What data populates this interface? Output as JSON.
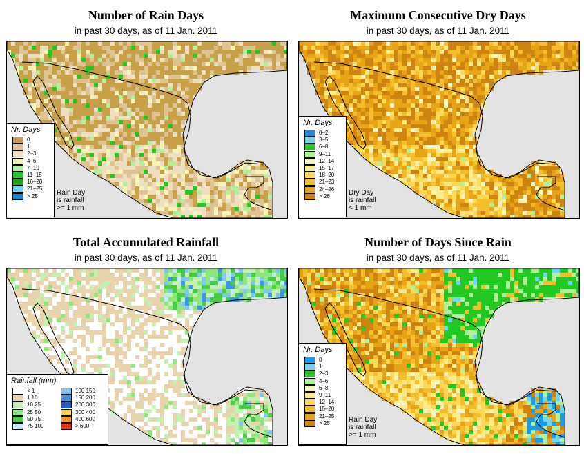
{
  "panels": [
    {
      "title": "Number of Rain Days",
      "subtitle": "in past 30 days, as of  11 Jan. 2011",
      "legend_title": "Nr. Days",
      "classes": [
        {
          "label": "0",
          "color": "#c9a04a"
        },
        {
          "label": "1",
          "color": "#dfc393"
        },
        {
          "label": "2–3",
          "color": "#eedfc0"
        },
        {
          "label": "4–6",
          "color": "#f5f3b8"
        },
        {
          "label": "7–10",
          "color": "#b2f09a"
        },
        {
          "label": "11–15",
          "color": "#22c922"
        },
        {
          "label": "16–20",
          "color": "#16a816"
        },
        {
          "label": "21–25",
          "color": "#6fd6f2"
        },
        {
          "label": "> 25",
          "color": "#1a86d0"
        }
      ],
      "note": [
        "Rain Day",
        "is rainfall",
        ">= 1 mm"
      ]
    },
    {
      "title": "Maximum Consecutive Dry Days",
      "subtitle": "in past 30 days, as of  11 Jan. 2011",
      "legend_title": "Nr. Days",
      "classes": [
        {
          "label": "0–2",
          "color": "#1a8fe0"
        },
        {
          "label": "3–5",
          "color": "#6fd6f2"
        },
        {
          "label": "6–8",
          "color": "#22c922"
        },
        {
          "label": "9–11",
          "color": "#b2f09a"
        },
        {
          "label": "12–14",
          "color": "#f7f5bf"
        },
        {
          "label": "15–17",
          "color": "#fbeb8c"
        },
        {
          "label": "18–20",
          "color": "#fbd855"
        },
        {
          "label": "21–23",
          "color": "#f3bd2c"
        },
        {
          "label": "24–26",
          "color": "#e7a417"
        },
        {
          "label": "> 26",
          "color": "#cd8410"
        }
      ],
      "note": [
        "Dry Day",
        "is rainfall",
        "< 1 mm"
      ]
    },
    {
      "title": "Total Accumulated Rainfall",
      "subtitle": "in past 30 days, as of  11 Jan. 2011",
      "legend_title": "Rainfall (mm)",
      "classes": [
        {
          "label": "< 1",
          "color": "#ffffff"
        },
        {
          "label": "1     10",
          "color": "#e8d3ad"
        },
        {
          "label": "10    25",
          "color": "#c4f0b2"
        },
        {
          "label": "25    50",
          "color": "#8ee67c"
        },
        {
          "label": "50    75",
          "color": "#44cc44"
        },
        {
          "label": "75   100",
          "color": "#bfe9f7"
        },
        {
          "label": "100  150",
          "color": "#7fc7ee"
        },
        {
          "label": "150  200",
          "color": "#3d97e6"
        },
        {
          "label": "200  300",
          "color": "#1a5fcc"
        },
        {
          "label": "300  400",
          "color": "#f8d35a"
        },
        {
          "label": "400  600",
          "color": "#f39a24"
        },
        {
          "label": "> 600",
          "color": "#e8321a"
        }
      ],
      "note": []
    },
    {
      "title": "Number of Days Since Rain",
      "subtitle": "in past 30 days, as of  11 Jan. 2011",
      "legend_title": "Nr. Days",
      "classes": [
        {
          "label": "0",
          "color": "#1a9be6"
        },
        {
          "label": "1",
          "color": "#6fd6f2"
        },
        {
          "label": "2–3",
          "color": "#22c922"
        },
        {
          "label": "4–6",
          "color": "#b2f09a"
        },
        {
          "label": "6–8",
          "color": "#f7f5bf"
        },
        {
          "label": "9–11",
          "color": "#fbeb8c"
        },
        {
          "label": "12–14",
          "color": "#fbd855"
        },
        {
          "label": "15–20",
          "color": "#f3bd2c"
        },
        {
          "label": "21–25",
          "color": "#e7a417"
        },
        {
          "label": "> 25",
          "color": "#cd8410"
        }
      ],
      "note": [
        "Rain Day",
        "is rainfall",
        ">= 1 mm"
      ]
    }
  ]
}
